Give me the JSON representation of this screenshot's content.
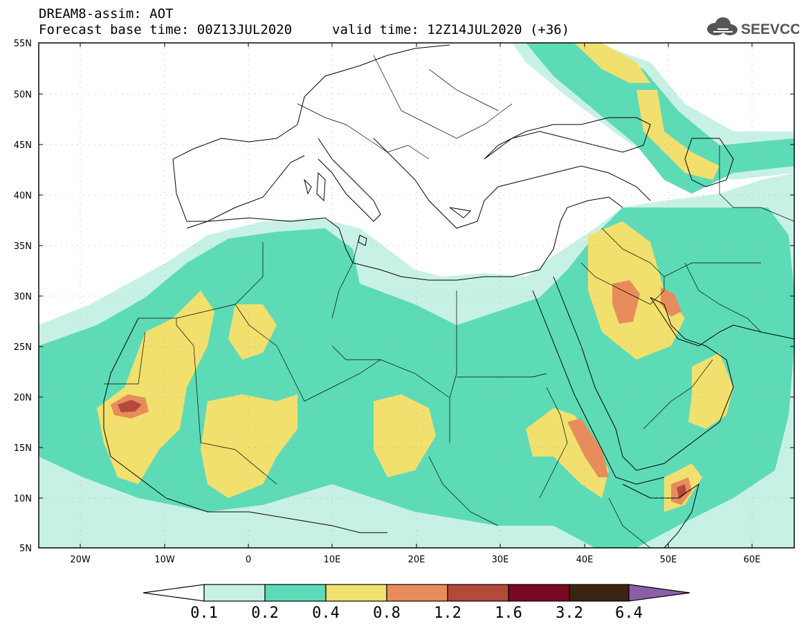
{
  "header": {
    "line1": "DREAM8-assim: AOT",
    "line2": "Forecast base time: 00Z13JUL2020",
    "line3": "valid time: 12Z14JUL2020 (+36)"
  },
  "logo": {
    "text": "SEEVCCC",
    "icon": "cloud-icon"
  },
  "map": {
    "lat_labels": [
      "55N",
      "50N",
      "45N",
      "40N",
      "35N",
      "30N",
      "25N",
      "20N",
      "15N",
      "10N",
      "5N"
    ],
    "lon_labels": [
      "20W",
      "10W",
      "0",
      "10E",
      "20E",
      "30E",
      "40E",
      "50E",
      "60E"
    ],
    "lat_range": [
      5,
      55
    ],
    "lon_range": [
      -25,
      65
    ],
    "grid": "dotted"
  },
  "colorbar": {
    "labels": [
      "0.1",
      "0.2",
      "0.4",
      "0.8",
      "1.2",
      "1.6",
      "3.2",
      "6.4"
    ],
    "colors": [
      "#c8f1e6",
      "#5ddbb7",
      "#f2e06e",
      "#e88c5c",
      "#b24a3c",
      "#7a0a24",
      "#3c2412",
      "#8c5ea8"
    ]
  }
}
